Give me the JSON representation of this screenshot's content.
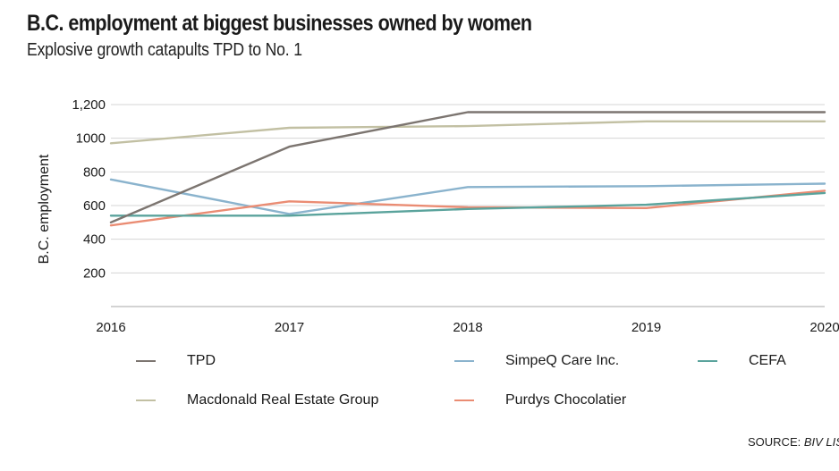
{
  "header": {
    "title": "B.C. employment at biggest businesses owned by women",
    "subtitle": "Explosive growth catapults TPD to No. 1"
  },
  "chart_data": {
    "type": "line",
    "title": "B.C. employment at biggest businesses owned by women",
    "subtitle": "Explosive growth catapults TPD to No. 1",
    "xlabel": "",
    "ylabel": "B.C. employment",
    "x": [
      "2016",
      "2017",
      "2018",
      "2019",
      "2020"
    ],
    "ylim": [
      0,
      1200
    ],
    "yticks": [
      200,
      400,
      600,
      800,
      1000,
      1200
    ],
    "ytick_labels": [
      "200",
      "400",
      "600",
      "800",
      "1000",
      "1,200"
    ],
    "grid": true,
    "legend_position": "bottom",
    "series": [
      {
        "name": "TPD",
        "color": "#7c7570",
        "values": [
          500,
          950,
          1155,
          1155,
          1155
        ]
      },
      {
        "name": "SimpeQ Care Inc.",
        "color": "#8ab3cd",
        "values": [
          755,
          550,
          710,
          715,
          730
        ]
      },
      {
        "name": "CEFA",
        "color": "#5aa39c",
        "values": [
          540,
          540,
          580,
          605,
          675
        ]
      },
      {
        "name": "Macdonald Real Estate Group",
        "color": "#c2c0a3",
        "values": [
          970,
          1062,
          1072,
          1100,
          1100
        ]
      },
      {
        "name": "Purdys Chocolatier",
        "color": "#ea8c73",
        "values": [
          482,
          625,
          590,
          585,
          688
        ]
      }
    ]
  },
  "legend": {
    "items": [
      {
        "label": "TPD",
        "color": "#7c7570"
      },
      {
        "label": "SimpeQ Care Inc.",
        "color": "#8ab3cd"
      },
      {
        "label": "CEFA",
        "color": "#5aa39c"
      },
      {
        "label": "Macdonald Real Estate Group",
        "color": "#c2c0a3"
      },
      {
        "label": "Purdys Chocolatier",
        "color": "#ea8c73"
      }
    ]
  },
  "source": {
    "prefix": "SOURCE: ",
    "name": "BIV LIST"
  }
}
